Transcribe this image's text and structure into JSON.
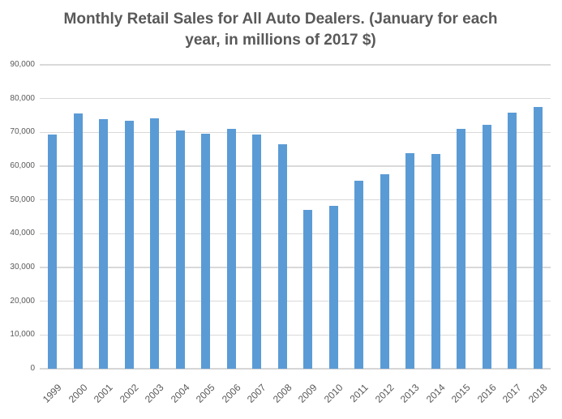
{
  "chart_data": {
    "type": "bar",
    "title": "Monthly Retail Sales for All Auto Dealers. (January for each year, in millions of 2017 $)",
    "categories": [
      "1999",
      "2000",
      "2001",
      "2002",
      "2003",
      "2004",
      "2005",
      "2006",
      "2007",
      "2008",
      "2009",
      "2010",
      "2011",
      "2012",
      "2013",
      "2014",
      "2015",
      "2016",
      "2017",
      "2018"
    ],
    "values": [
      69400,
      75600,
      73900,
      73400,
      74100,
      70600,
      69500,
      71000,
      69400,
      66500,
      47100,
      48200,
      55800,
      57700,
      63800,
      63600,
      71000,
      72300,
      75800,
      77600
    ],
    "xlabel": "",
    "ylabel": "",
    "ylim": [
      0,
      90000
    ],
    "ytick_interval": 10000,
    "ytick_labels": [
      "0",
      "10,000",
      "20,000",
      "30,000",
      "40,000",
      "50,000",
      "60,000",
      "70,000",
      "80,000",
      "90,000"
    ],
    "grid": true,
    "legend": "none",
    "x_label_rotation_deg": -45,
    "colors": {
      "bar": "#5B9BD5",
      "gridline": "#D9D9D9",
      "axis_line": "#D6D6D6",
      "text": "#595959",
      "background": "#FFFFFF"
    }
  }
}
